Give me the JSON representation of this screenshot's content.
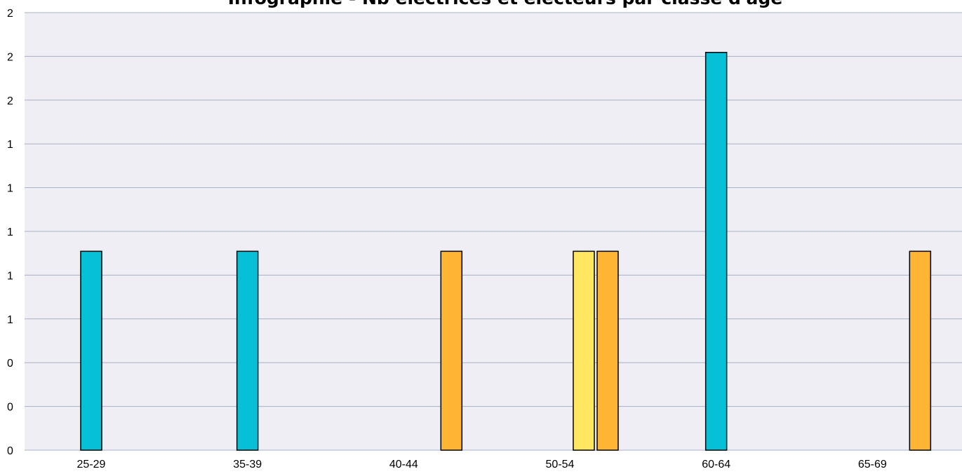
{
  "chart_data": {
    "type": "bar",
    "title": "Infographie - Nb électrices et électeurs par classe d'âge",
    "xlabel": "",
    "ylabel": "",
    "categories": [
      "25-29",
      "35-39",
      "40-44",
      "50-54",
      "60-64",
      "65-69"
    ],
    "y_tick_labels": [
      "0",
      "0",
      "0",
      "1",
      "1",
      "1",
      "1",
      "1",
      "2",
      "2",
      "2"
    ],
    "ylim": [
      0,
      2.2
    ],
    "grid": true,
    "series": [
      {
        "color": "#05c0d6",
        "values": [
          1,
          1,
          0,
          0,
          2,
          0
        ]
      },
      {
        "color": "#ffe761",
        "values": [
          0,
          0,
          0,
          1,
          0,
          0
        ]
      },
      {
        "color": "#ffb534",
        "values": [
          0,
          0,
          1,
          1,
          0,
          1
        ]
      }
    ],
    "plot_background": "#efeef5",
    "grid_color": "#a9b0c6"
  }
}
